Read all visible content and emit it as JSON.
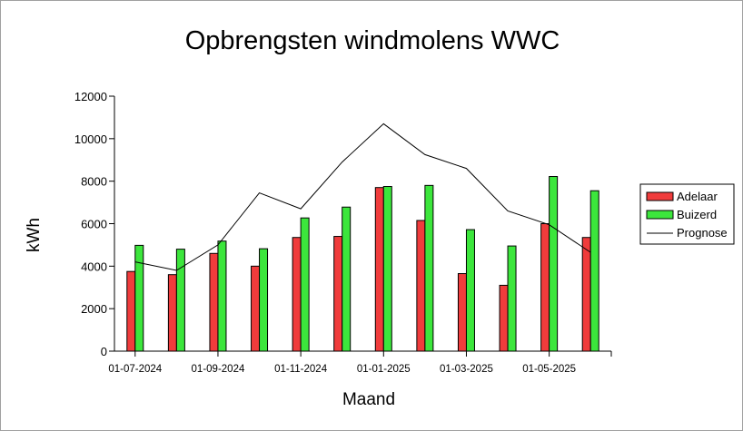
{
  "chart_data": {
    "type": "bar",
    "title": "Opbrengsten windmolens WWC",
    "xlabel": "Maand",
    "ylabel": "kWh",
    "ylim": [
      0,
      12000
    ],
    "yticks": [
      0,
      2000,
      4000,
      6000,
      8000,
      10000,
      12000
    ],
    "categories": [
      "07-2024",
      "08-2024",
      "09-2024",
      "10-2024",
      "11-2024",
      "12-2024",
      "01-2025",
      "02-2025",
      "03-2025",
      "04-2025",
      "05-2025",
      "06-2025"
    ],
    "x_tick_labels": [
      "01-07-2024",
      "01-09-2024",
      "01-11-2024",
      "01-01-2025",
      "01-03-2025",
      "01-05-2025"
    ],
    "series": [
      {
        "name": "Adelaar",
        "type": "bar",
        "color": "#f03c3c",
        "values": [
          3750,
          3600,
          4600,
          4000,
          5350,
          5400,
          7700,
          6150,
          3650,
          3100,
          6000,
          5350
        ]
      },
      {
        "name": "Buizerd",
        "type": "bar",
        "color": "#3ce63c",
        "values": [
          4980,
          4800,
          5180,
          4820,
          6270,
          6780,
          7750,
          7800,
          5720,
          4950,
          8220,
          7550
        ]
      },
      {
        "name": "Prognose",
        "type": "line",
        "color": "#000000",
        "values": [
          4200,
          3800,
          5000,
          7450,
          6700,
          8900,
          10700,
          9250,
          8600,
          6600,
          5950,
          4650
        ]
      }
    ],
    "legend_position": "right",
    "grid": false
  }
}
